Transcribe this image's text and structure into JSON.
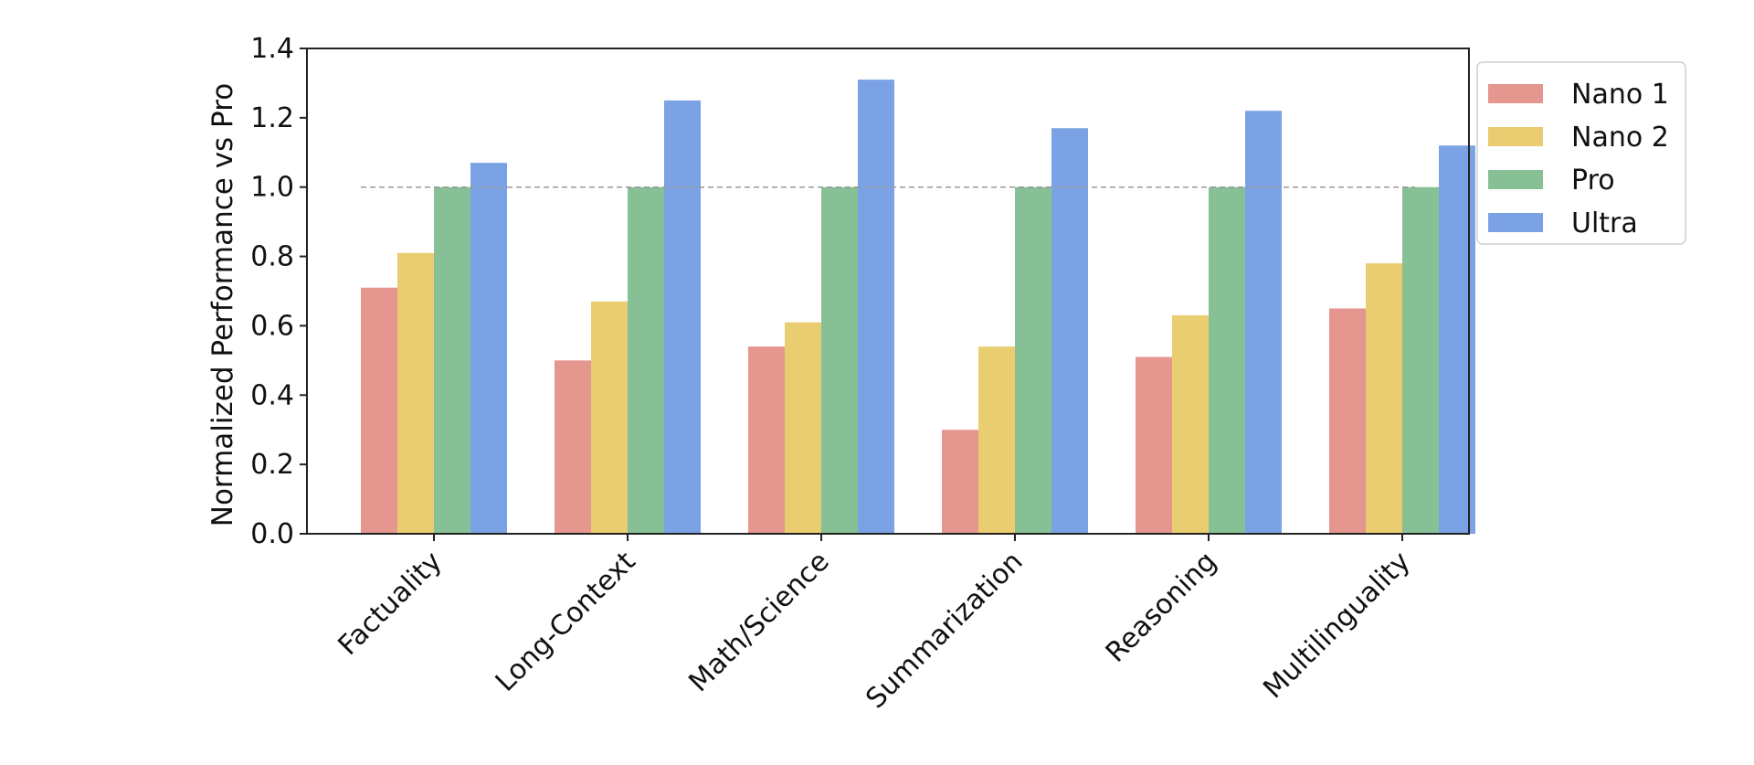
{
  "chart_data": {
    "type": "bar",
    "categories": [
      "Factuality",
      "Long-Context",
      "Math/Science",
      "Summarization",
      "Reasoning",
      "Multilinguality"
    ],
    "series": [
      {
        "name": "Nano 1",
        "color": "#e5968f",
        "values": [
          0.71,
          0.5,
          0.54,
          0.3,
          0.51,
          0.65
        ]
      },
      {
        "name": "Nano 2",
        "color": "#e9cd70",
        "values": [
          0.81,
          0.67,
          0.61,
          0.54,
          0.63,
          0.78
        ]
      },
      {
        "name": "Pro",
        "color": "#88c096",
        "values": [
          1.0,
          1.0,
          1.0,
          1.0,
          1.0,
          1.0
        ]
      },
      {
        "name": "Ultra",
        "color": "#7aa2e4",
        "values": [
          1.07,
          1.25,
          1.31,
          1.17,
          1.22,
          1.12
        ]
      }
    ],
    "ylabel": "Normalized Performance vs Pro",
    "xlabel": "",
    "title": "",
    "ylim": [
      0,
      1.4
    ],
    "yticks": [
      "0.0",
      "0.2",
      "0.4",
      "0.6",
      "0.8",
      "1.0",
      "1.2",
      "1.4"
    ],
    "reference_line": 1.0,
    "grid": false,
    "legend_position": "upper-right-outside"
  }
}
